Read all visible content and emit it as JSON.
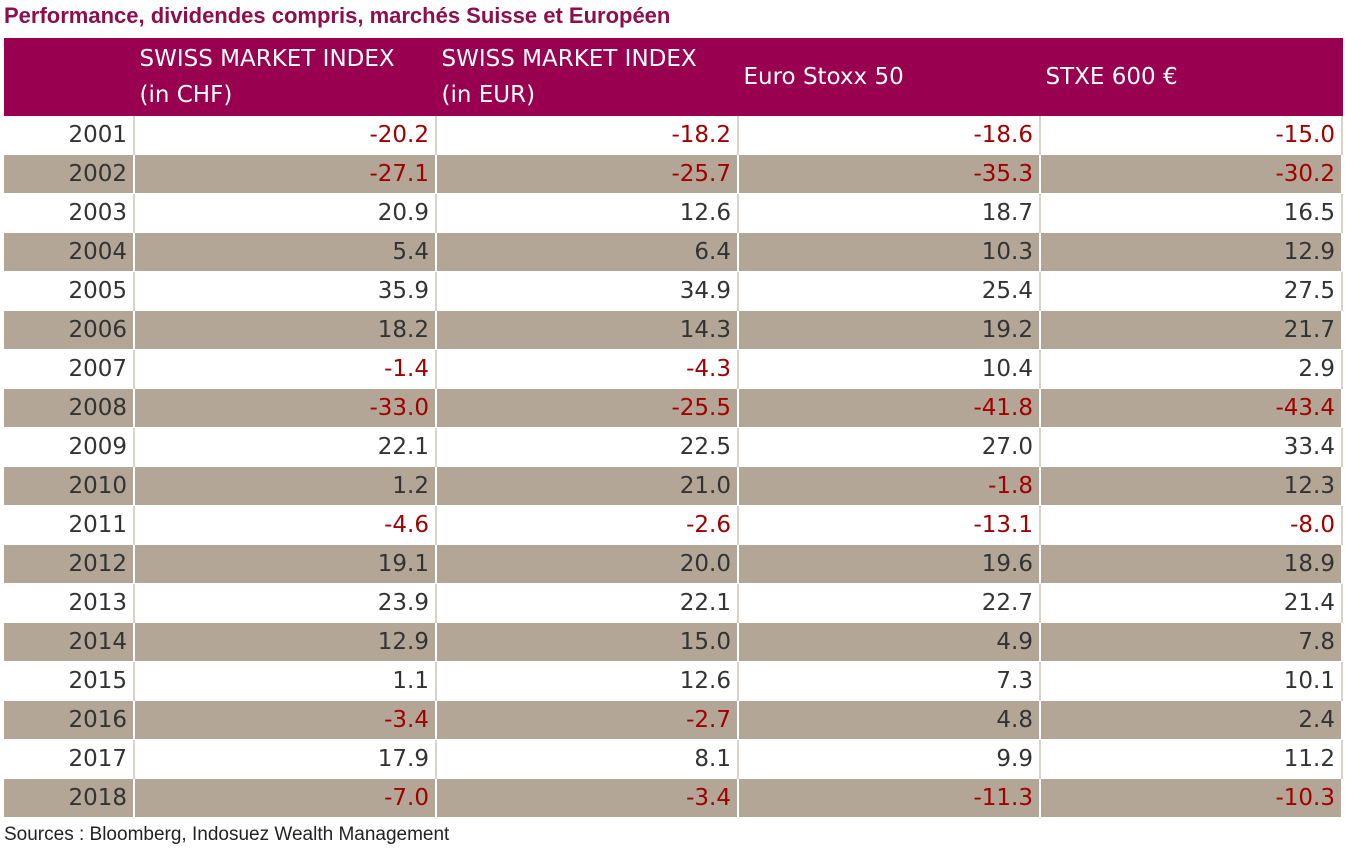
{
  "title": "Performance, dividendes compris, marchés Suisse et Européen",
  "source": "Sources : Bloomberg, Indosuez Wealth Management",
  "colors": {
    "header_bg": "#990050",
    "title": "#8e0e4b",
    "band": "#b3a696",
    "negative": "#a00000"
  },
  "chart_data": {
    "type": "table",
    "title": "Performance, dividendes compris, marchés Suisse et Européen",
    "columns": [
      {
        "line1": "",
        "line2": ""
      },
      {
        "line1": "SWISS MARKET INDEX",
        "line2": "(in CHF)"
      },
      {
        "line1": "SWISS MARKET INDEX",
        "line2": "(in EUR)"
      },
      {
        "line1": "Euro Stoxx 50",
        "line2": ""
      },
      {
        "line1": "STXE 600 €",
        "line2": ""
      }
    ],
    "rows": [
      {
        "year": "2001",
        "values": [
          "-20.2",
          "-18.2",
          "-18.6",
          "-15.0"
        ]
      },
      {
        "year": "2002",
        "values": [
          "-27.1",
          "-25.7",
          "-35.3",
          "-30.2"
        ]
      },
      {
        "year": "2003",
        "values": [
          "20.9",
          "12.6",
          "18.7",
          "16.5"
        ]
      },
      {
        "year": "2004",
        "values": [
          "5.4",
          "6.4",
          "10.3",
          "12.9"
        ]
      },
      {
        "year": "2005",
        "values": [
          "35.9",
          "34.9",
          "25.4",
          "27.5"
        ]
      },
      {
        "year": "2006",
        "values": [
          "18.2",
          "14.3",
          "19.2",
          "21.7"
        ]
      },
      {
        "year": "2007",
        "values": [
          "-1.4",
          "-4.3",
          "10.4",
          "2.9"
        ]
      },
      {
        "year": "2008",
        "values": [
          "-33.0",
          "-25.5",
          "-41.8",
          "-43.4"
        ]
      },
      {
        "year": "2009",
        "values": [
          "22.1",
          "22.5",
          "27.0",
          "33.4"
        ]
      },
      {
        "year": "2010",
        "values": [
          "1.2",
          "21.0",
          "-1.8",
          "12.3"
        ]
      },
      {
        "year": "2011",
        "values": [
          "-4.6",
          "-2.6",
          "-13.1",
          "-8.0"
        ]
      },
      {
        "year": "2012",
        "values": [
          "19.1",
          "20.0",
          "19.6",
          "18.9"
        ]
      },
      {
        "year": "2013",
        "values": [
          "23.9",
          "22.1",
          "22.7",
          "21.4"
        ]
      },
      {
        "year": "2014",
        "values": [
          "12.9",
          "15.0",
          "4.9",
          "7.8"
        ]
      },
      {
        "year": "2015",
        "values": [
          "1.1",
          "12.6",
          "7.3",
          "10.1"
        ]
      },
      {
        "year": "2016",
        "values": [
          "-3.4",
          "-2.7",
          "4.8",
          "2.4"
        ]
      },
      {
        "year": "2017",
        "values": [
          "17.9",
          "8.1",
          "9.9",
          "11.2"
        ]
      },
      {
        "year": "2018",
        "values": [
          "-7.0",
          "-3.4",
          "-11.3",
          "-10.3"
        ]
      }
    ]
  }
}
